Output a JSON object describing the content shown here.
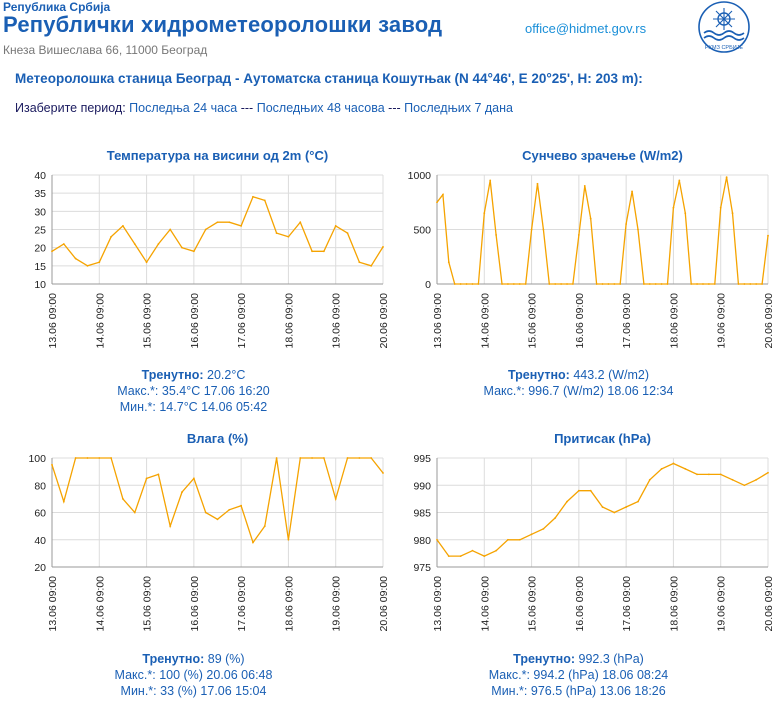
{
  "header": {
    "country": "Република Србија",
    "title": "Републички хидрометеоролошки завод",
    "address": "Кнеза Вишеслава 66, 11000 Београд",
    "email": "office@hidmet.gov.rs",
    "logo_text": "РХМЗ СРБИЈЕ"
  },
  "station_title": "Метеоролошка станица Београд - Аутоматска станица Кошутњак (N 44°46', E 20°25', H: 203 m):",
  "period": {
    "label": "Изаберите период:",
    "separator": "---",
    "options": [
      "Последња 24 часа",
      "Последњих 48 часова",
      "Последњих 7 дана"
    ]
  },
  "colors": {
    "series": "#f5a300",
    "grid": "#dcdcdc",
    "text": "#1a5fb4"
  },
  "readouts": [
    {
      "current_label": "Тренутно:",
      "current": "20.2°C",
      "max_label": "Макс.*:",
      "max": "35.4°C 17.06 16:20",
      "min_label": "Мин.*:",
      "min": "14.7°C 14.06 05:42"
    },
    {
      "current_label": "Тренутно:",
      "current": "443.2 (W/m2)",
      "max_label": "Макс.*:",
      "max": "996.7 (W/m2) 18.06 12:34",
      "min_label": "",
      "min": ""
    },
    {
      "current_label": "Тренутно:",
      "current": "89 (%)",
      "max_label": "Макс.*:",
      "max": "100 (%) 20.06 06:48",
      "min_label": "Мин.*:",
      "min": "33 (%) 17.06 15:04"
    },
    {
      "current_label": "Тренутно:",
      "current": "992.3 (hPa)",
      "max_label": "Макс.*:",
      "max": "994.2 (hPa) 18.06 08:24",
      "min_label": "Мин.*:",
      "min": "976.5 (hPa) 13.06 18:26"
    }
  ],
  "chart_data": [
    {
      "type": "line",
      "title": "Температура на висини од 2m (°C)",
      "xlabel": "",
      "ylabel": "",
      "x_ticks": [
        "13.06 09:00",
        "14.06 09:00",
        "15.06 09:00",
        "16.06 09:00",
        "17.06 09:00",
        "18.06 09:00",
        "19.06 09:00",
        "20.06 09:00"
      ],
      "x_hours": [
        0,
        6,
        12,
        18,
        24,
        30,
        36,
        42,
        48,
        54,
        60,
        66,
        72,
        78,
        84,
        90,
        96,
        102,
        108,
        114,
        120,
        126,
        132,
        138,
        144,
        150,
        156,
        162,
        168
      ],
      "ylim": [
        10,
        40
      ],
      "y_ticks": [
        10,
        15,
        20,
        25,
        30,
        35,
        40
      ],
      "grid": true,
      "series": [
        {
          "values": [
            19,
            21,
            17,
            15,
            16,
            23,
            26,
            21,
            16,
            21,
            25,
            20,
            19,
            25,
            27,
            27,
            26,
            34,
            33,
            24,
            23,
            27,
            19,
            19,
            26,
            24,
            16,
            15,
            20.2
          ]
        }
      ]
    },
    {
      "type": "line",
      "title": "Сунчево зрачење (W/m2)",
      "xlabel": "",
      "ylabel": "",
      "x_ticks": [
        "13.06 09:00",
        "14.06 09:00",
        "15.06 09:00",
        "16.06 09:00",
        "17.06 09:00",
        "18.06 09:00",
        "19.06 09:00",
        "20.06 09:00"
      ],
      "x_hours": [
        0,
        3,
        6,
        9,
        12,
        15,
        18,
        21,
        24,
        27,
        30,
        33,
        36,
        39,
        42,
        45,
        48,
        51,
        54,
        57,
        60,
        63,
        66,
        69,
        72,
        75,
        78,
        81,
        84,
        87,
        90,
        93,
        96,
        99,
        102,
        105,
        108,
        111,
        114,
        117,
        120,
        123,
        126,
        129,
        132,
        135,
        138,
        141,
        144,
        147,
        150,
        153,
        156,
        159,
        162,
        165,
        168
      ],
      "ylim": [
        0,
        1000
      ],
      "y_ticks": [
        0,
        500,
        1000
      ],
      "grid": true,
      "series": [
        {
          "values": [
            750,
            820,
            200,
            0,
            0,
            0,
            0,
            0,
            650,
            950,
            450,
            0,
            0,
            0,
            0,
            0,
            500,
            920,
            500,
            0,
            0,
            0,
            0,
            0,
            450,
            900,
            600,
            0,
            0,
            0,
            0,
            0,
            550,
            850,
            500,
            0,
            0,
            0,
            0,
            0,
            700,
            950,
            650,
            0,
            0,
            0,
            0,
            0,
            700,
            980,
            650,
            0,
            0,
            0,
            0,
            0,
            443.2
          ]
        }
      ]
    },
    {
      "type": "line",
      "title": "Влага (%)",
      "xlabel": "",
      "ylabel": "",
      "x_ticks": [
        "13.06 09:00",
        "14.06 09:00",
        "15.06 09:00",
        "16.06 09:00",
        "17.06 09:00",
        "18.06 09:00",
        "19.06 09:00",
        "20.06 09:00"
      ],
      "x_hours": [
        0,
        6,
        12,
        18,
        24,
        30,
        36,
        42,
        48,
        54,
        60,
        66,
        72,
        78,
        84,
        90,
        96,
        102,
        108,
        114,
        120,
        126,
        132,
        138,
        144,
        150,
        156,
        162,
        168
      ],
      "ylim": [
        20,
        100
      ],
      "y_ticks": [
        20,
        40,
        60,
        80,
        100
      ],
      "grid": true,
      "series": [
        {
          "values": [
            95,
            68,
            100,
            100,
            100,
            100,
            70,
            60,
            85,
            88,
            50,
            75,
            85,
            60,
            55,
            62,
            65,
            38,
            50,
            100,
            40,
            100,
            100,
            100,
            70,
            100,
            100,
            100,
            89
          ]
        }
      ]
    },
    {
      "type": "line",
      "title": "Притисак (hPa)",
      "xlabel": "",
      "ylabel": "",
      "x_ticks": [
        "13.06 09:00",
        "14.06 09:00",
        "15.06 09:00",
        "16.06 09:00",
        "17.06 09:00",
        "18.06 09:00",
        "19.06 09:00",
        "20.06 09:00"
      ],
      "x_hours": [
        0,
        6,
        12,
        18,
        24,
        30,
        36,
        42,
        48,
        54,
        60,
        66,
        72,
        78,
        84,
        90,
        96,
        102,
        108,
        114,
        120,
        126,
        132,
        138,
        144,
        150,
        156,
        162,
        168
      ],
      "ylim": [
        975,
        995
      ],
      "y_ticks": [
        975,
        980,
        985,
        990,
        995
      ],
      "grid": true,
      "series": [
        {
          "values": [
            980,
            977,
            977,
            978,
            977,
            978,
            980,
            980,
            981,
            982,
            984,
            987,
            989,
            989,
            986,
            985,
            986,
            987,
            991,
            993,
            994,
            993,
            992,
            992,
            992,
            991,
            990,
            991,
            992.3
          ]
        }
      ]
    }
  ]
}
